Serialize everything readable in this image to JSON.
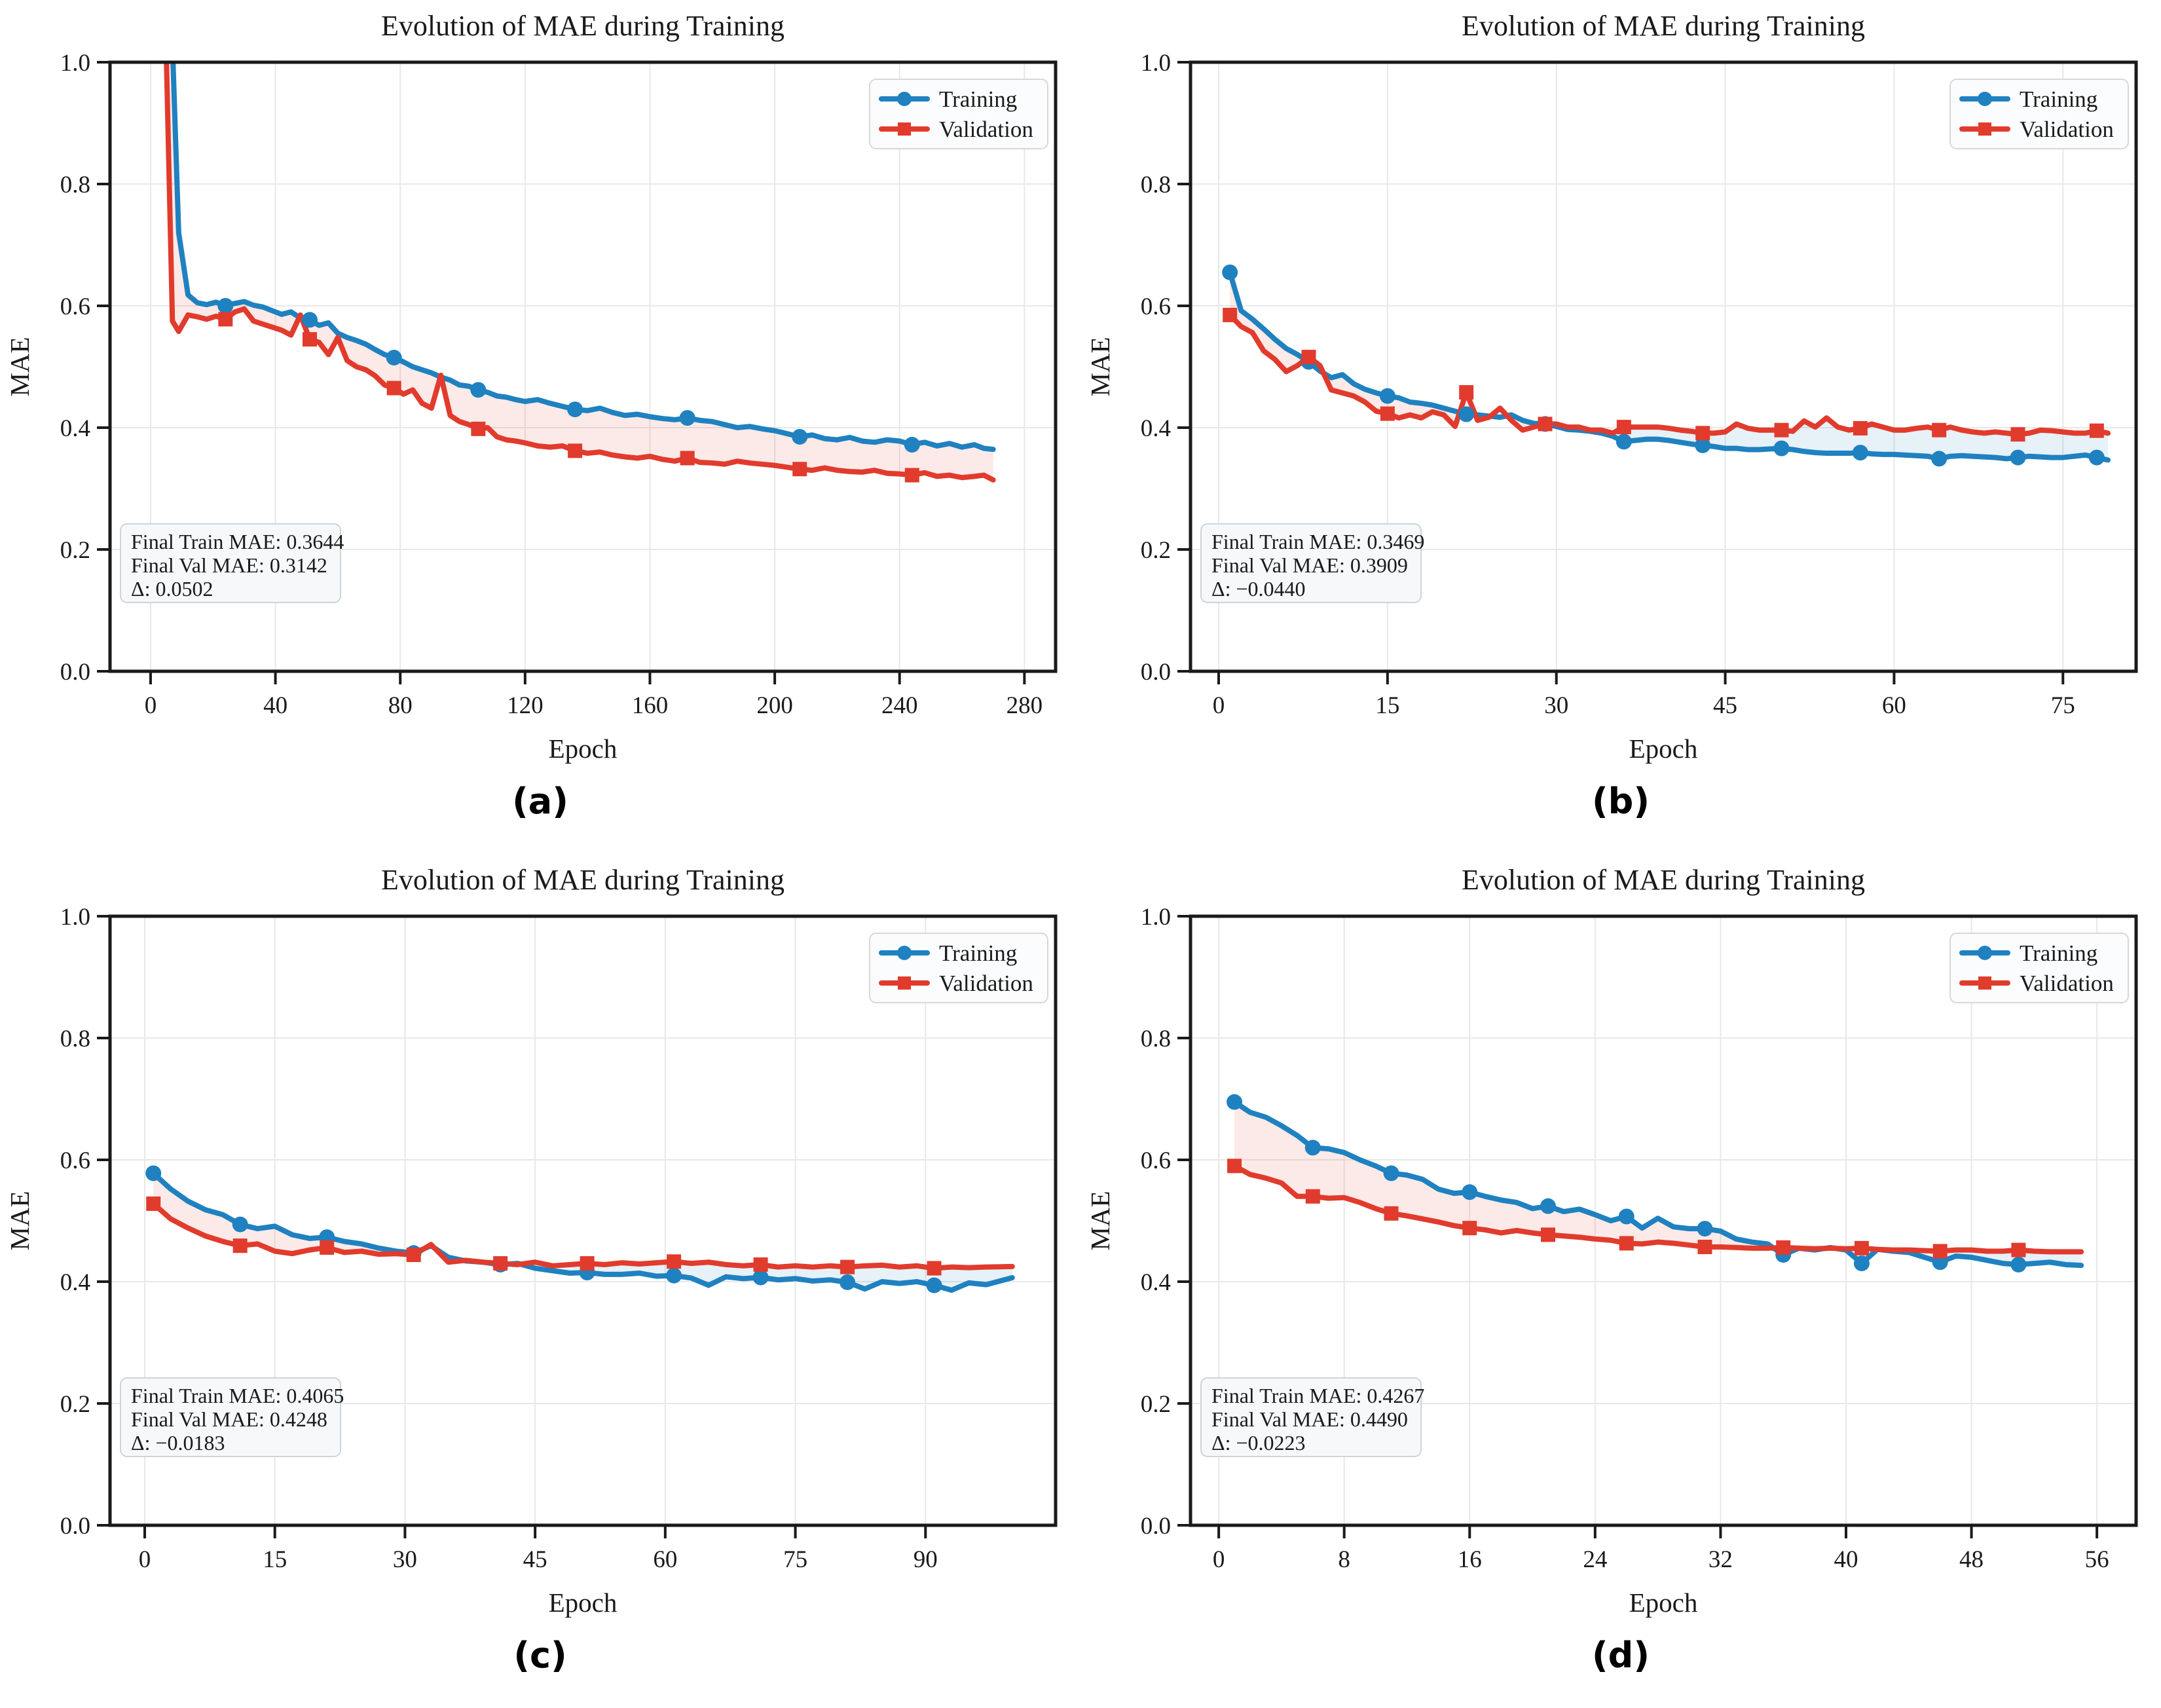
{
  "style": {
    "background": "#ffffff",
    "train_color": "#1f81c0",
    "val_color": "#e13b2d",
    "fill_train_above": "rgba(225,60,45,0.11)",
    "fill_train_below": "rgba(31,129,192,0.11)",
    "grid_color": "#e8e8e8",
    "spine_color": "#1a1a1a",
    "text_color": "#1a1a1a",
    "legend_bg": "#fbfcfd",
    "legend_border": "#d8d8d8",
    "annotation_bg": "#f6f8fa",
    "annotation_border": "#ccd5dc"
  },
  "chart_data": [
    {
      "type": "line",
      "caption": "(a)",
      "title": "Evolution of MAE during Training",
      "xlabel": "Epoch",
      "ylabel": "MAE",
      "xlim": [
        -13,
        290
      ],
      "ylim": [
        0,
        1
      ],
      "xticks": [
        0,
        40,
        80,
        120,
        160,
        200,
        240,
        280
      ],
      "yticks": [
        0.0,
        0.2,
        0.4,
        0.6,
        0.8,
        1.0
      ],
      "grid": true,
      "legend_position": "upper right",
      "annotation": [
        "Final Train MAE: 0.3644",
        "Final Val MAE: 0.3142",
        "Δ: 0.0502"
      ],
      "marker_every": 9,
      "x": [
        1,
        3,
        5,
        7,
        9,
        12,
        15,
        18,
        21,
        24,
        27,
        30,
        33,
        36,
        39,
        42,
        45,
        48,
        51,
        54,
        57,
        60,
        63,
        66,
        69,
        72,
        75,
        78,
        81,
        84,
        87,
        90,
        93,
        96,
        99,
        102,
        105,
        108,
        111,
        114,
        117,
        120,
        124,
        128,
        132,
        136,
        140,
        144,
        148,
        152,
        156,
        160,
        164,
        168,
        172,
        176,
        180,
        184,
        188,
        192,
        196,
        200,
        204,
        208,
        212,
        216,
        220,
        224,
        228,
        232,
        236,
        240,
        244,
        248,
        252,
        256,
        260,
        264,
        267,
        270
      ],
      "series": [
        {
          "name": "Training",
          "marker": "circle",
          "values": [
            1.1,
            1.08,
            1.06,
            1.03,
            0.72,
            0.618,
            0.605,
            0.602,
            0.606,
            0.6,
            0.604,
            0.607,
            0.601,
            0.598,
            0.592,
            0.586,
            0.59,
            0.58,
            0.577,
            0.568,
            0.572,
            0.555,
            0.548,
            0.543,
            0.537,
            0.528,
            0.52,
            0.515,
            0.508,
            0.5,
            0.495,
            0.49,
            0.483,
            0.478,
            0.47,
            0.468,
            0.462,
            0.458,
            0.452,
            0.45,
            0.446,
            0.443,
            0.446,
            0.44,
            0.435,
            0.43,
            0.428,
            0.432,
            0.425,
            0.42,
            0.422,
            0.418,
            0.415,
            0.413,
            0.416,
            0.412,
            0.41,
            0.405,
            0.4,
            0.402,
            0.398,
            0.395,
            0.39,
            0.385,
            0.388,
            0.382,
            0.38,
            0.384,
            0.378,
            0.376,
            0.38,
            0.378,
            0.372,
            0.376,
            0.37,
            0.374,
            0.368,
            0.372,
            0.366,
            0.3644
          ]
        },
        {
          "name": "Validation",
          "marker": "square",
          "values": [
            1.08,
            1.06,
            1.02,
            0.575,
            0.558,
            0.585,
            0.582,
            0.578,
            0.583,
            0.578,
            0.59,
            0.595,
            0.575,
            0.57,
            0.565,
            0.56,
            0.552,
            0.585,
            0.545,
            0.54,
            0.52,
            0.548,
            0.51,
            0.5,
            0.495,
            0.485,
            0.47,
            0.465,
            0.455,
            0.462,
            0.44,
            0.432,
            0.486,
            0.42,
            0.41,
            0.405,
            0.398,
            0.4,
            0.385,
            0.38,
            0.378,
            0.375,
            0.37,
            0.368,
            0.37,
            0.362,
            0.358,
            0.36,
            0.355,
            0.352,
            0.35,
            0.353,
            0.348,
            0.345,
            0.35,
            0.343,
            0.342,
            0.34,
            0.345,
            0.342,
            0.34,
            0.338,
            0.335,
            0.332,
            0.33,
            0.334,
            0.33,
            0.328,
            0.327,
            0.33,
            0.325,
            0.324,
            0.322,
            0.326,
            0.32,
            0.322,
            0.318,
            0.32,
            0.322,
            0.3142
          ]
        }
      ]
    },
    {
      "type": "line",
      "caption": "(b)",
      "title": "Evolution of MAE during Training",
      "xlabel": "Epoch",
      "ylabel": "MAE",
      "xlim": [
        -2.5,
        81.5
      ],
      "ylim": [
        0,
        1
      ],
      "xticks": [
        0,
        15,
        30,
        45,
        60,
        75
      ],
      "yticks": [
        0.0,
        0.2,
        0.4,
        0.6,
        0.8,
        1.0
      ],
      "grid": true,
      "legend_position": "upper right",
      "annotation": [
        "Final Train MAE: 0.3469",
        "Final Val MAE: 0.3909",
        "Δ: −0.0440"
      ],
      "marker_every": 7,
      "x": [
        1,
        2,
        3,
        4,
        5,
        6,
        7,
        8,
        9,
        10,
        11,
        12,
        13,
        14,
        15,
        16,
        17,
        18,
        19,
        20,
        21,
        22,
        23,
        24,
        25,
        26,
        27,
        28,
        29,
        30,
        31,
        32,
        33,
        34,
        35,
        36,
        37,
        38,
        39,
        40,
        41,
        42,
        43,
        44,
        45,
        46,
        47,
        48,
        49,
        50,
        51,
        52,
        53,
        54,
        55,
        56,
        57,
        58,
        59,
        60,
        61,
        62,
        63,
        64,
        65,
        66,
        67,
        68,
        69,
        70,
        71,
        72,
        73,
        74,
        75,
        76,
        77,
        78,
        79
      ],
      "series": [
        {
          "name": "Training",
          "marker": "circle",
          "values": [
            0.655,
            0.592,
            0.578,
            0.562,
            0.545,
            0.53,
            0.52,
            0.508,
            0.493,
            0.482,
            0.487,
            0.472,
            0.463,
            0.457,
            0.452,
            0.449,
            0.442,
            0.44,
            0.437,
            0.432,
            0.427,
            0.422,
            0.421,
            0.419,
            0.417,
            0.421,
            0.412,
            0.407,
            0.406,
            0.402,
            0.397,
            0.396,
            0.394,
            0.391,
            0.386,
            0.377,
            0.379,
            0.381,
            0.381,
            0.379,
            0.376,
            0.373,
            0.371,
            0.369,
            0.366,
            0.366,
            0.364,
            0.364,
            0.365,
            0.366,
            0.364,
            0.361,
            0.359,
            0.358,
            0.358,
            0.358,
            0.359,
            0.357,
            0.356,
            0.356,
            0.355,
            0.354,
            0.353,
            0.349,
            0.353,
            0.354,
            0.353,
            0.352,
            0.351,
            0.349,
            0.351,
            0.353,
            0.352,
            0.351,
            0.351,
            0.353,
            0.355,
            0.351,
            0.3469
          ]
        },
        {
          "name": "Validation",
          "marker": "square",
          "values": [
            0.585,
            0.566,
            0.556,
            0.526,
            0.512,
            0.492,
            0.502,
            0.516,
            0.502,
            0.462,
            0.457,
            0.452,
            0.442,
            0.427,
            0.423,
            0.416,
            0.421,
            0.416,
            0.426,
            0.421,
            0.402,
            0.458,
            0.412,
            0.417,
            0.432,
            0.412,
            0.396,
            0.401,
            0.406,
            0.406,
            0.401,
            0.401,
            0.396,
            0.396,
            0.391,
            0.401,
            0.401,
            0.401,
            0.401,
            0.399,
            0.396,
            0.394,
            0.391,
            0.391,
            0.393,
            0.406,
            0.399,
            0.396,
            0.396,
            0.396,
            0.394,
            0.411,
            0.401,
            0.416,
            0.401,
            0.396,
            0.399,
            0.406,
            0.401,
            0.396,
            0.396,
            0.399,
            0.401,
            0.396,
            0.401,
            0.396,
            0.393,
            0.391,
            0.393,
            0.391,
            0.389,
            0.391,
            0.396,
            0.395,
            0.393,
            0.391,
            0.391,
            0.395,
            0.3909
          ]
        }
      ]
    },
    {
      "type": "line",
      "caption": "(c)",
      "title": "Evolution of MAE during Training",
      "xlabel": "Epoch",
      "ylabel": "MAE",
      "xlim": [
        -4,
        105
      ],
      "ylim": [
        0,
        1
      ],
      "xticks": [
        0,
        15,
        30,
        45,
        60,
        75,
        90
      ],
      "yticks": [
        0.0,
        0.2,
        0.4,
        0.6,
        0.8,
        1.0
      ],
      "grid": true,
      "legend_position": "upper right",
      "annotation": [
        "Final Train MAE: 0.4065",
        "Final Val MAE: 0.4248",
        "Δ: −0.0183"
      ],
      "marker_every": 5,
      "x": [
        1,
        3,
        5,
        7,
        9,
        11,
        13,
        15,
        17,
        19,
        21,
        23,
        25,
        27,
        29,
        31,
        33,
        35,
        37,
        39,
        41,
        43,
        45,
        47,
        49,
        51,
        53,
        55,
        57,
        59,
        61,
        63,
        65,
        67,
        69,
        71,
        73,
        75,
        77,
        79,
        81,
        83,
        85,
        87,
        89,
        91,
        93,
        95,
        97,
        100
      ],
      "series": [
        {
          "name": "Training",
          "marker": "circle",
          "values": [
            0.578,
            0.552,
            0.532,
            0.518,
            0.51,
            0.494,
            0.487,
            0.491,
            0.477,
            0.471,
            0.473,
            0.466,
            0.462,
            0.455,
            0.45,
            0.447,
            0.459,
            0.44,
            0.434,
            0.432,
            0.428,
            0.43,
            0.422,
            0.418,
            0.414,
            0.415,
            0.412,
            0.412,
            0.414,
            0.409,
            0.41,
            0.406,
            0.394,
            0.408,
            0.405,
            0.407,
            0.403,
            0.405,
            0.401,
            0.403,
            0.399,
            0.388,
            0.4,
            0.397,
            0.4,
            0.394,
            0.386,
            0.398,
            0.395,
            0.4065
          ]
        },
        {
          "name": "Validation",
          "marker": "square",
          "values": [
            0.528,
            0.503,
            0.488,
            0.475,
            0.466,
            0.459,
            0.462,
            0.45,
            0.446,
            0.452,
            0.456,
            0.448,
            0.45,
            0.445,
            0.446,
            0.444,
            0.461,
            0.432,
            0.435,
            0.432,
            0.43,
            0.428,
            0.432,
            0.426,
            0.428,
            0.43,
            0.428,
            0.431,
            0.429,
            0.431,
            0.433,
            0.43,
            0.432,
            0.428,
            0.426,
            0.428,
            0.424,
            0.426,
            0.424,
            0.426,
            0.424,
            0.426,
            0.427,
            0.424,
            0.426,
            0.422,
            0.424,
            0.423,
            0.424,
            0.4248
          ]
        }
      ]
    },
    {
      "type": "line",
      "caption": "(d)",
      "title": "Evolution of MAE during Training",
      "xlabel": "Epoch",
      "ylabel": "MAE",
      "xlim": [
        -1.8,
        58.5
      ],
      "ylim": [
        0,
        1
      ],
      "xticks": [
        0,
        8,
        16,
        24,
        32,
        40,
        48,
        56
      ],
      "yticks": [
        0.0,
        0.2,
        0.4,
        0.6,
        0.8,
        1.0
      ],
      "grid": true,
      "legend_position": "upper right",
      "annotation": [
        "Final Train MAE: 0.4267",
        "Final Val MAE: 0.4490",
        "Δ: −0.0223"
      ],
      "marker_every": 5,
      "x": [
        1,
        2,
        3,
        4,
        5,
        6,
        7,
        8,
        9,
        10,
        11,
        12,
        13,
        14,
        15,
        16,
        17,
        18,
        19,
        20,
        21,
        22,
        23,
        24,
        25,
        26,
        27,
        28,
        29,
        30,
        31,
        32,
        33,
        34,
        35,
        36,
        37,
        38,
        39,
        40,
        41,
        42,
        43,
        44,
        45,
        46,
        47,
        48,
        49,
        50,
        51,
        52,
        53,
        54,
        55
      ],
      "series": [
        {
          "name": "Training",
          "marker": "circle",
          "values": [
            0.695,
            0.678,
            0.67,
            0.656,
            0.64,
            0.62,
            0.618,
            0.612,
            0.6,
            0.59,
            0.578,
            0.575,
            0.568,
            0.552,
            0.545,
            0.547,
            0.54,
            0.534,
            0.53,
            0.52,
            0.524,
            0.515,
            0.519,
            0.51,
            0.5,
            0.507,
            0.488,
            0.504,
            0.49,
            0.487,
            0.487,
            0.483,
            0.47,
            0.465,
            0.462,
            0.444,
            0.455,
            0.452,
            0.456,
            0.452,
            0.43,
            0.453,
            0.45,
            0.448,
            0.44,
            0.432,
            0.442,
            0.44,
            0.435,
            0.43,
            0.428,
            0.43,
            0.432,
            0.428,
            0.4267
          ]
        },
        {
          "name": "Validation",
          "marker": "square",
          "values": [
            0.59,
            0.576,
            0.57,
            0.562,
            0.54,
            0.54,
            0.537,
            0.538,
            0.53,
            0.52,
            0.512,
            0.508,
            0.503,
            0.498,
            0.492,
            0.488,
            0.485,
            0.48,
            0.484,
            0.48,
            0.477,
            0.475,
            0.473,
            0.47,
            0.468,
            0.463,
            0.462,
            0.465,
            0.463,
            0.46,
            0.457,
            0.457,
            0.456,
            0.455,
            0.455,
            0.456,
            0.455,
            0.454,
            0.455,
            0.454,
            0.455,
            0.453,
            0.452,
            0.452,
            0.451,
            0.45,
            0.452,
            0.452,
            0.45,
            0.45,
            0.452,
            0.45,
            0.449,
            0.449,
            0.449
          ]
        }
      ]
    }
  ]
}
